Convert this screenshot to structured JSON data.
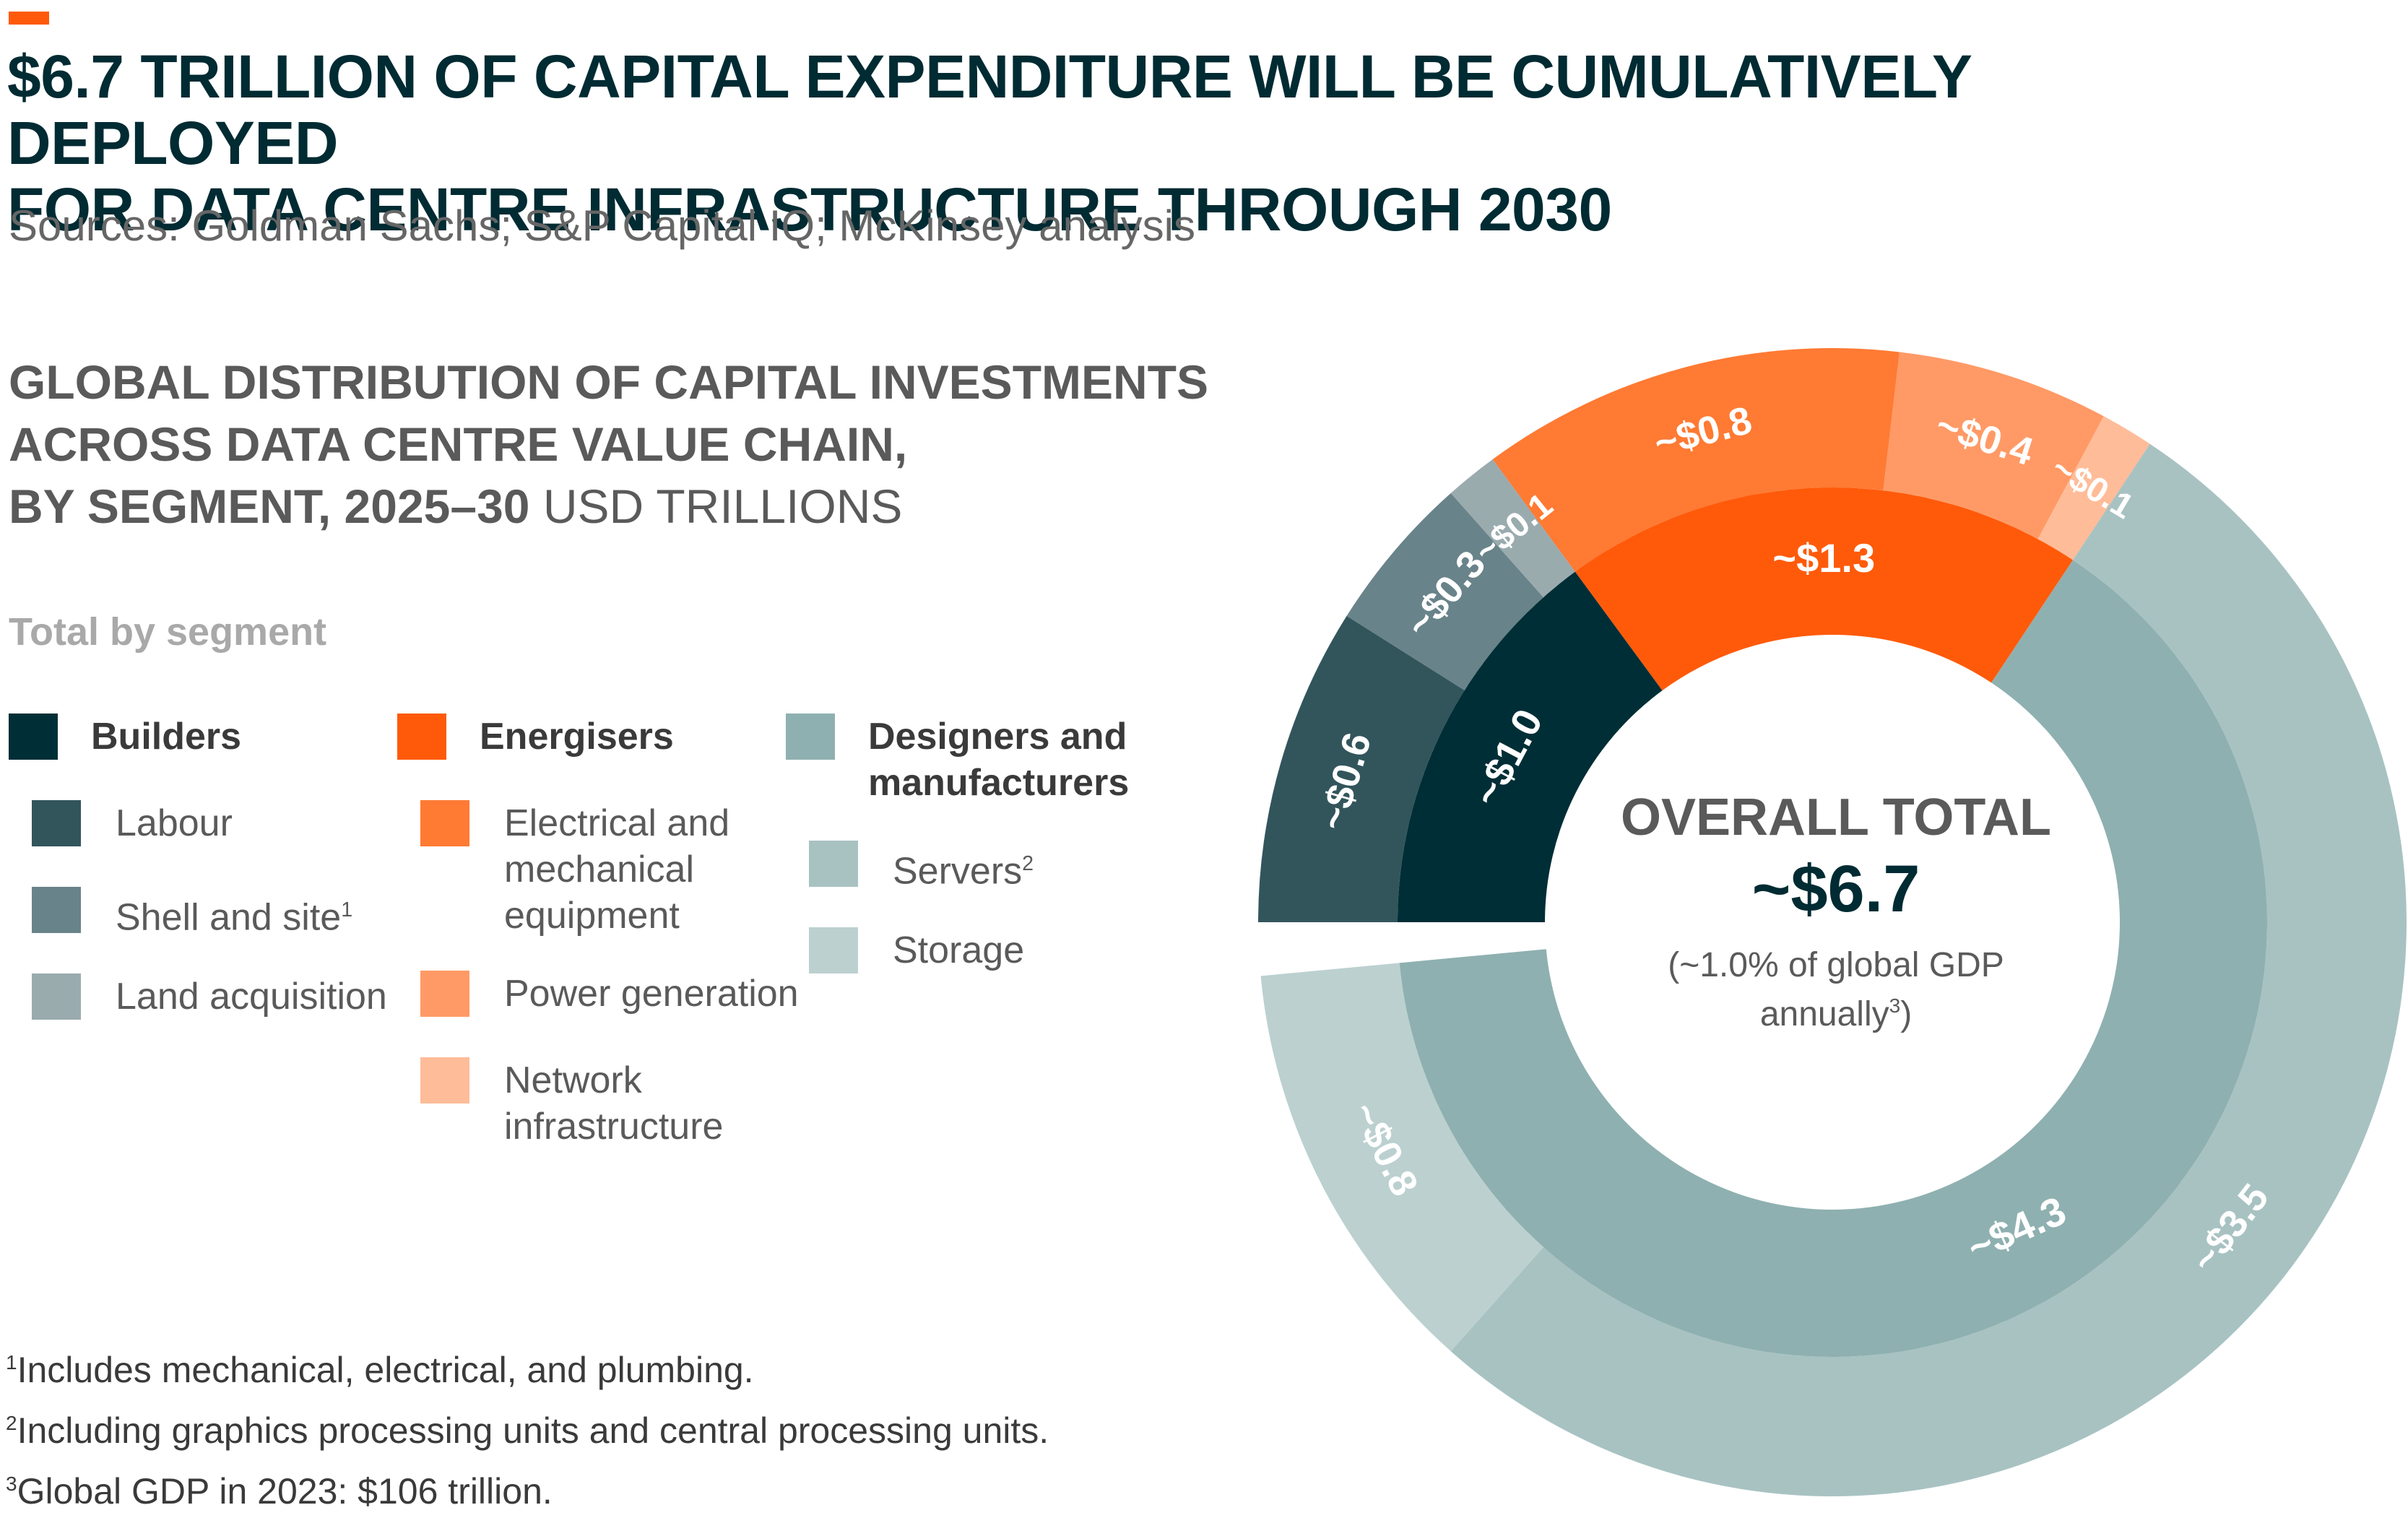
{
  "header": {
    "title_line1": "$6.7 TRILLION OF CAPITAL EXPENDITURE WILL BE CUMULATIVELY DEPLOYED",
    "title_line2": "FOR DATA CENTRE INFRASTRUCTURE THROUGH 2030",
    "sources": "Sources: Goldman Sachs; S&P Capital IQ; McKinsey analysis",
    "subtitle_line1": "GLOBAL DISTRIBUTION OF CAPITAL INVESTMENTS",
    "subtitle_line2": "ACROSS DATA CENTRE VALUE CHAIN,",
    "subtitle_line3": "BY SEGMENT, 2025–30",
    "subtitle_unit": "USD TRILLIONS"
  },
  "legend": {
    "heading": "Total by segment",
    "builders": {
      "label": "Builders",
      "items": [
        "Labour",
        "Shell and site",
        "Land acquisition"
      ],
      "sup": "1"
    },
    "energisers": {
      "label": "Energisers",
      "items_line": [
        "Electrical and",
        "mechanical",
        "equipment"
      ],
      "power": "Power generation",
      "network_line": [
        "Network",
        "infrastructure"
      ]
    },
    "designers": {
      "label_line": [
        "Designers and",
        "manufacturers"
      ],
      "servers": "Servers",
      "servers_sup": "2",
      "storage": "Storage"
    }
  },
  "footnotes": {
    "n1": "Includes mechanical, electrical, and plumbing.",
    "n2": "Including graphics processing units and central processing units.",
    "n3": "Global GDP in 2023: $106 trillion.",
    "m1": "1",
    "m2": "2",
    "m3": "3"
  },
  "center": {
    "heading": "OVERALL TOTAL",
    "value": "~$6.7",
    "note_line1": "(~1.0% of global GDP",
    "note_line2": "annually",
    "note_sup": "3",
    "note_close": ")"
  },
  "chart_data": {
    "type": "donut",
    "title": "Global distribution of capital investments across data centre value chain, by segment, 2025–30",
    "unit": "USD trillions",
    "total": 6.7,
    "inner_ring": [
      {
        "name": "Builders",
        "value": 1.0,
        "label": "~$1.0",
        "color": "#002e36"
      },
      {
        "name": "Energisers",
        "value": 1.3,
        "label": "~$1.3",
        "color": "#ff5a0a"
      },
      {
        "name": "Designers and manufacturers",
        "value": 4.3,
        "label": "~$4.3",
        "color": "#8fb0b0"
      }
    ],
    "outer_ring": [
      {
        "name": "Labour",
        "parent": "Builders",
        "value": 0.6,
        "label": "~$0.6",
        "color": "#32555c"
      },
      {
        "name": "Shell and site",
        "parent": "Builders",
        "value": 0.3,
        "label": "~$0.3",
        "color": "#69838a"
      },
      {
        "name": "Land acquisition",
        "parent": "Builders",
        "value": 0.1,
        "label": "~$0.1",
        "color": "#9aabae"
      },
      {
        "name": "Electrical and mechanical equipment",
        "parent": "Energisers",
        "value": 0.8,
        "label": "~$0.8",
        "color": "#ff7a33"
      },
      {
        "name": "Power generation",
        "parent": "Energisers",
        "value": 0.4,
        "label": "~$0.4",
        "color": "#ff9a66"
      },
      {
        "name": "Network infrastructure",
        "parent": "Energisers",
        "value": 0.1,
        "label": "~$0.1",
        "color": "#ffbc99"
      },
      {
        "name": "Servers",
        "parent": "Designers and manufacturers",
        "value": 3.5,
        "label": "~$3.5",
        "color": "#a8c2c2"
      },
      {
        "name": "Storage",
        "parent": "Designers and manufacturers",
        "value": 0.8,
        "label": "~$0.8",
        "color": "#bcd0d0"
      }
    ]
  }
}
